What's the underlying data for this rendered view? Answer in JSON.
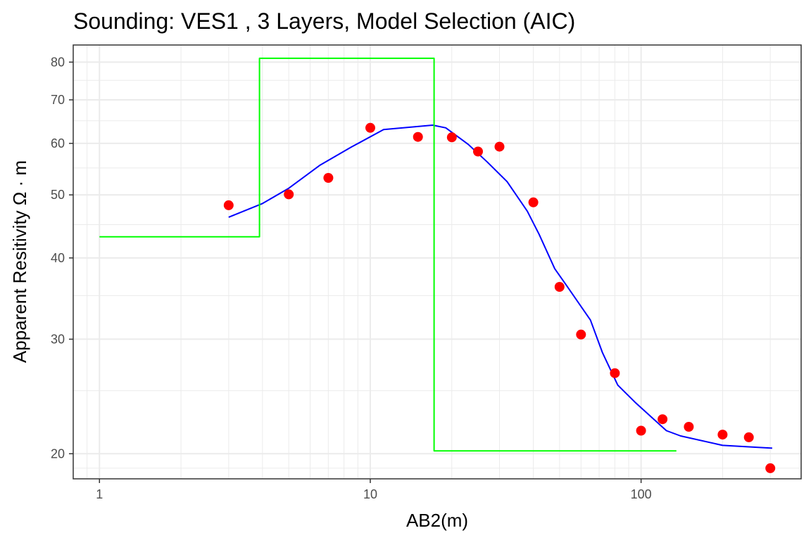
{
  "chart_data": {
    "type": "line",
    "title": "Sounding:  VES1 , 3 Layers, Model Selection (AIC)",
    "xlabel": "AB2(m)",
    "ylabel": "Apparent Resitivity Ω · m",
    "x_scale": "log10",
    "y_scale": "log10",
    "xlim": [
      0.8,
      390
    ],
    "ylim": [
      18.3,
      85
    ],
    "x_ticks": [
      {
        "value": 1,
        "label": "1"
      },
      {
        "value": 10,
        "label": "10"
      },
      {
        "value": 100,
        "label": "100"
      }
    ],
    "y_ticks": [
      {
        "value": 20,
        "label": "20"
      },
      {
        "value": 30,
        "label": "30"
      },
      {
        "value": 40,
        "label": "40"
      },
      {
        "value": 50,
        "label": "50"
      },
      {
        "value": 60,
        "label": "60"
      },
      {
        "value": 70,
        "label": "70"
      },
      {
        "value": 80,
        "label": "80"
      }
    ],
    "grid": true,
    "legend": "none",
    "series": [
      {
        "kind": "scatter",
        "color": "#ff0000",
        "points": [
          [
            3,
            48.2
          ],
          [
            5,
            50.1
          ],
          [
            7,
            53.1
          ],
          [
            10,
            63.4
          ],
          [
            15,
            61.4
          ],
          [
            20,
            61.3
          ],
          [
            25,
            58.3
          ],
          [
            30,
            59.3
          ],
          [
            40,
            48.7
          ],
          [
            50,
            36.1
          ],
          [
            60,
            30.5
          ],
          [
            80,
            26.6
          ],
          [
            100,
            21.7
          ],
          [
            120,
            22.6
          ],
          [
            150,
            22.0
          ],
          [
            200,
            21.4
          ],
          [
            250,
            21.2
          ],
          [
            300,
            19.0
          ]
        ]
      },
      {
        "kind": "line",
        "color": "#0000ff",
        "points": [
          [
            3,
            46.2
          ],
          [
            4,
            48.5
          ],
          [
            5,
            51.2
          ],
          [
            6.5,
            55.5
          ],
          [
            8.5,
            59.2
          ],
          [
            11.2,
            63.0
          ],
          [
            17,
            64.0
          ],
          [
            19,
            63.4
          ],
          [
            23,
            59.8
          ],
          [
            27,
            56.2
          ],
          [
            32,
            52.4
          ],
          [
            38,
            47.2
          ],
          [
            42,
            43.5
          ],
          [
            48,
            38.5
          ],
          [
            53,
            36.3
          ],
          [
            65,
            32.1
          ],
          [
            72,
            28.6
          ],
          [
            82,
            25.5
          ],
          [
            95,
            24.0
          ],
          [
            110,
            22.7
          ],
          [
            124,
            21.7
          ],
          [
            140,
            21.3
          ],
          [
            200,
            20.6
          ],
          [
            305,
            20.4
          ]
        ]
      },
      {
        "kind": "step",
        "color": "#00ff00",
        "points": [
          [
            1,
            43.1
          ],
          [
            3.9,
            43.1
          ],
          [
            3.9,
            81.1
          ],
          [
            17.2,
            81.1
          ],
          [
            17.2,
            20.2
          ],
          [
            135,
            20.2
          ]
        ]
      }
    ]
  }
}
